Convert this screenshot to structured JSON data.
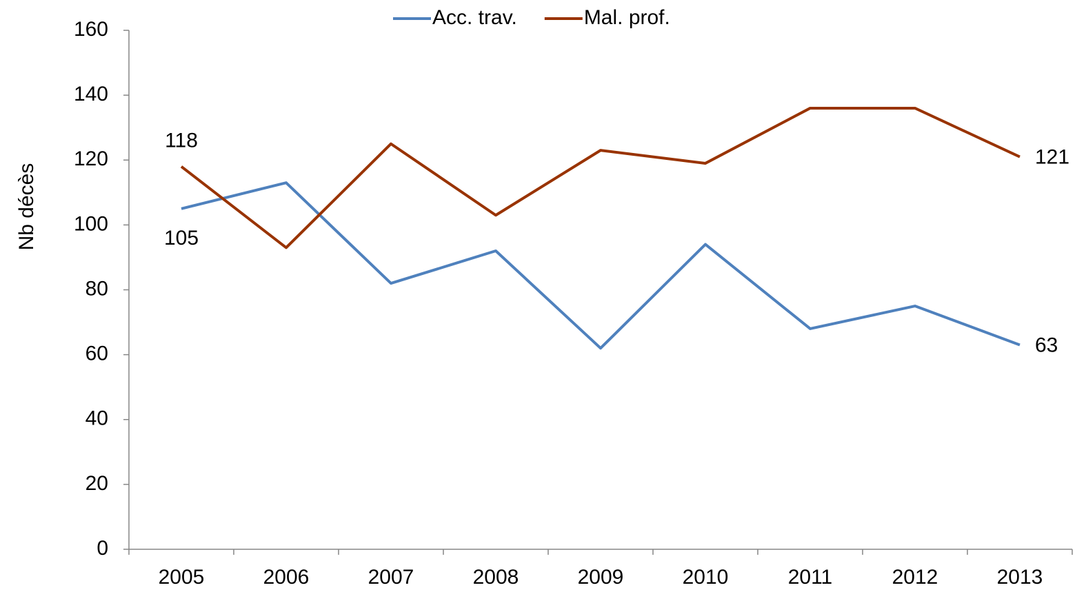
{
  "chart_data": {
    "type": "line",
    "y_label": "Nb décès",
    "categories": [
      "2005",
      "2006",
      "2007",
      "2008",
      "2009",
      "2010",
      "2011",
      "2012",
      "2013"
    ],
    "series": [
      {
        "name": "Acc. trav.",
        "color": "#4f81bd",
        "values": [
          105,
          113,
          82,
          92,
          62,
          94,
          68,
          75,
          63
        ]
      },
      {
        "name": "Mal. prof.",
        "color": "#993300",
        "values": [
          118,
          93,
          125,
          103,
          123,
          119,
          136,
          136,
          121
        ]
      }
    ],
    "ylim": [
      0,
      160
    ],
    "yticks": [
      0,
      20,
      40,
      60,
      80,
      100,
      120,
      140,
      160
    ],
    "grid": false,
    "legend": "top"
  }
}
